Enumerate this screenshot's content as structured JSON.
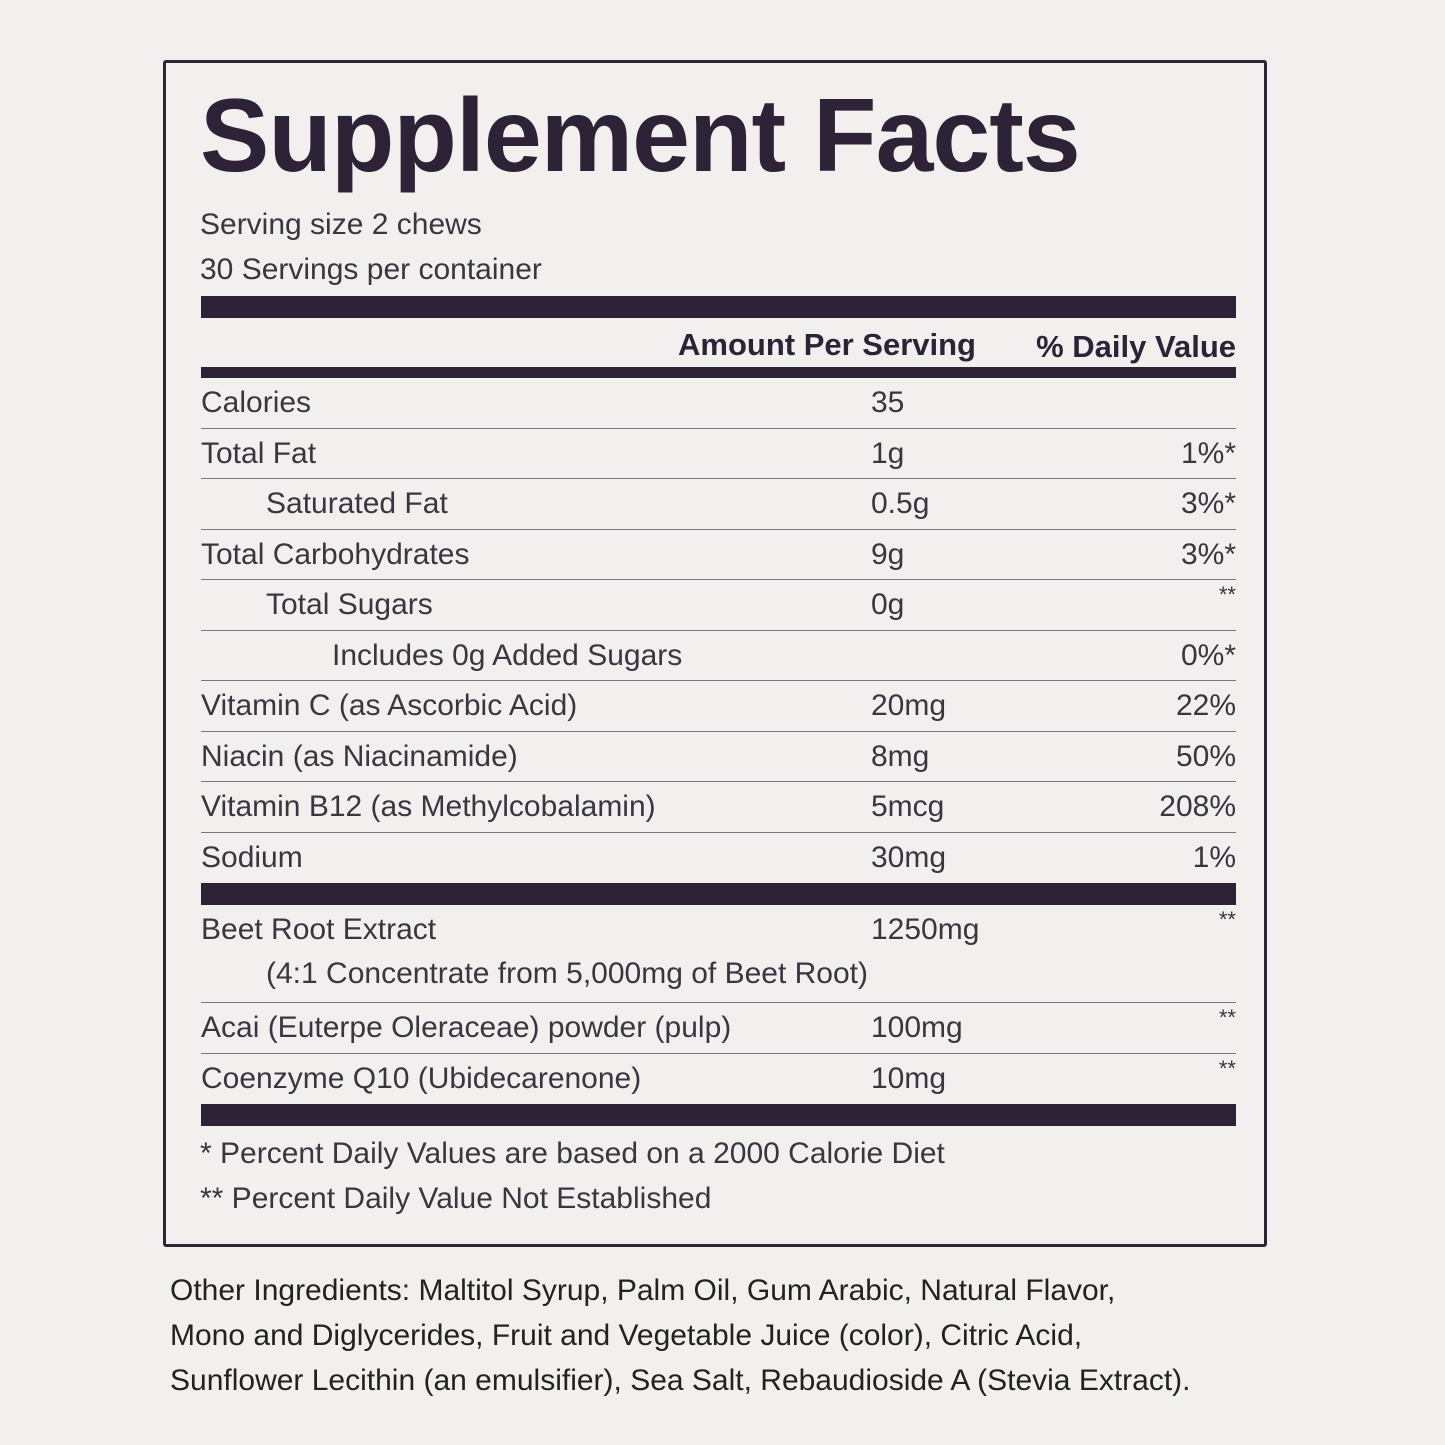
{
  "label": {
    "title": "Supplement Facts",
    "serving_size": "Serving size 2 chews",
    "servings_per_container": "30 Servings per container",
    "header": {
      "amount": "Amount Per Serving",
      "daily_value": "% Daily Value"
    },
    "sections": [
      {
        "rows": [
          {
            "name": "Calories",
            "amount": "35",
            "indent": 0
          },
          {
            "name": "Total Fat",
            "amount": "1g",
            "daily_value": "1%*",
            "indent": 0
          },
          {
            "name": "Saturated Fat",
            "amount": "0.5g",
            "daily_value": "3%*",
            "indent": 1
          },
          {
            "name": "Total Carbohydrates",
            "amount": "9g",
            "daily_value": "3%*",
            "indent": 0
          },
          {
            "name": "Total Sugars",
            "amount": "0g",
            "daily_value": "**",
            "indent": 1
          },
          {
            "name": "Includes 0g Added Sugars",
            "daily_value": "0%*",
            "indent": 2
          },
          {
            "name": "Vitamin C (as Ascorbic Acid)",
            "amount": "20mg",
            "daily_value": "22%",
            "indent": 0
          },
          {
            "name": "Niacin (as Niacinamide)",
            "amount": "8mg",
            "daily_value": "50%",
            "indent": 0
          },
          {
            "name": "Vitamin B12 (as Methylcobalamin)",
            "amount": "5mcg",
            "daily_value": "208%",
            "indent": 0
          },
          {
            "name": "Sodium",
            "amount": "30mg",
            "daily_value": "1%",
            "indent": 0
          }
        ]
      },
      {
        "rows": [
          {
            "name": "Beet Root Extract",
            "amount": "1250mg",
            "daily_value": "**",
            "indent": 0,
            "note": "(4:1 Concentrate from 5,000mg of Beet Root)"
          },
          {
            "name": "Acai (Euterpe Oleraceae) powder (pulp)",
            "amount": "100mg",
            "daily_value": "**",
            "indent": 0
          },
          {
            "name": "Coenzyme Q10 (Ubidecarenone)",
            "amount": "10mg",
            "daily_value": "**",
            "indent": 0
          }
        ]
      }
    ],
    "footnotes": [
      "* Percent Daily Values are based on a 2000 Calorie Diet",
      "** Percent Daily Value Not Established"
    ]
  },
  "other_ingredients": [
    "Other Ingredients: Maltitol Syrup, Palm Oil, Gum Arabic, Natural Flavor,",
    "Mono and Diglycerides, Fruit and Vegetable Juice (color), Citric Acid,",
    "Sunflower Lecithin (an emulsifier), Sea Salt, Rebaudioside A (Stevia Extract)."
  ]
}
